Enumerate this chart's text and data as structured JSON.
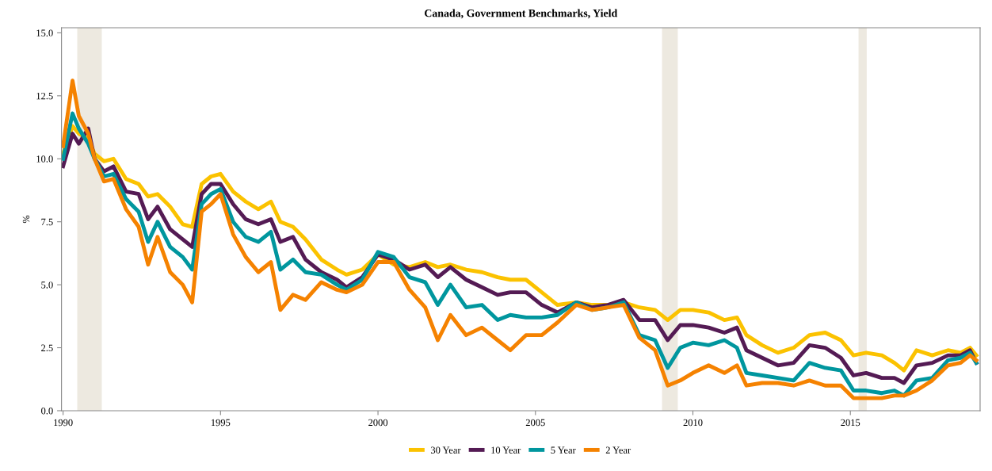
{
  "chart_data": {
    "type": "line",
    "title": "Canada, Government Benchmarks, Yield",
    "ylabel": "%",
    "x": [
      1990.0,
      1990.3,
      1990.5,
      1990.8,
      1991.0,
      1991.3,
      1991.6,
      1992.0,
      1992.4,
      1992.7,
      1993.0,
      1993.4,
      1993.8,
      1994.1,
      1994.4,
      1994.7,
      1995.0,
      1995.4,
      1995.8,
      1996.2,
      1996.6,
      1996.9,
      1997.3,
      1997.7,
      1998.2,
      1998.7,
      1999.0,
      1999.5,
      2000.0,
      2000.5,
      2001.0,
      2001.5,
      2001.9,
      2002.3,
      2002.8,
      2003.3,
      2003.8,
      2004.2,
      2004.7,
      2005.2,
      2005.7,
      2006.3,
      2006.8,
      2007.3,
      2007.8,
      2008.3,
      2008.8,
      2009.2,
      2009.6,
      2010.0,
      2010.5,
      2011.0,
      2011.4,
      2011.7,
      2012.2,
      2012.7,
      2013.2,
      2013.7,
      2014.2,
      2014.7,
      2015.1,
      2015.5,
      2016.0,
      2016.4,
      2016.7,
      2017.1,
      2017.6,
      2018.1,
      2018.5,
      2018.8,
      2019.0
    ],
    "series": [
      {
        "name": "30 Year",
        "color": "#fbc200",
        "values": [
          10.2,
          11.3,
          11.0,
          10.8,
          10.2,
          9.9,
          10.0,
          9.2,
          9.0,
          8.5,
          8.6,
          8.1,
          7.4,
          7.3,
          9.0,
          9.3,
          9.4,
          8.7,
          8.3,
          8.0,
          8.3,
          7.5,
          7.3,
          6.8,
          6.0,
          5.6,
          5.4,
          5.6,
          6.2,
          5.8,
          5.7,
          5.9,
          5.7,
          5.8,
          5.6,
          5.5,
          5.3,
          5.2,
          5.2,
          4.7,
          4.2,
          4.3,
          4.2,
          4.2,
          4.3,
          4.1,
          4.0,
          3.6,
          4.0,
          4.0,
          3.9,
          3.6,
          3.7,
          3.0,
          2.6,
          2.3,
          2.5,
          3.0,
          3.1,
          2.8,
          2.2,
          2.3,
          2.2,
          1.9,
          1.6,
          2.4,
          2.2,
          2.4,
          2.3,
          2.5,
          2.2
        ]
      },
      {
        "name": "10 Year",
        "color": "#541b54",
        "values": [
          9.7,
          11.0,
          10.6,
          11.2,
          10.0,
          9.5,
          9.7,
          8.7,
          8.6,
          7.6,
          8.1,
          7.2,
          6.8,
          6.5,
          8.6,
          9.0,
          9.0,
          8.2,
          7.6,
          7.4,
          7.6,
          6.7,
          6.9,
          6.0,
          5.5,
          5.2,
          4.9,
          5.3,
          6.2,
          6.0,
          5.6,
          5.8,
          5.3,
          5.7,
          5.2,
          4.9,
          4.6,
          4.7,
          4.7,
          4.2,
          3.9,
          4.3,
          4.1,
          4.2,
          4.4,
          3.6,
          3.6,
          2.8,
          3.4,
          3.4,
          3.3,
          3.1,
          3.3,
          2.4,
          2.1,
          1.8,
          1.9,
          2.6,
          2.5,
          2.1,
          1.4,
          1.5,
          1.3,
          1.3,
          1.1,
          1.8,
          1.9,
          2.2,
          2.2,
          2.4,
          1.9
        ]
      },
      {
        "name": "5 Year",
        "color": "#00969e",
        "values": [
          10.0,
          11.8,
          11.2,
          10.6,
          10.0,
          9.3,
          9.4,
          8.4,
          7.9,
          6.7,
          7.5,
          6.5,
          6.1,
          5.6,
          8.2,
          8.6,
          8.8,
          7.5,
          6.9,
          6.7,
          7.1,
          5.6,
          6.0,
          5.5,
          5.4,
          5.0,
          4.8,
          5.2,
          6.3,
          6.1,
          5.3,
          5.1,
          4.2,
          5.0,
          4.1,
          4.2,
          3.6,
          3.8,
          3.7,
          3.7,
          3.8,
          4.3,
          4.0,
          4.1,
          4.3,
          3.0,
          2.8,
          1.7,
          2.5,
          2.7,
          2.6,
          2.8,
          2.5,
          1.5,
          1.4,
          1.3,
          1.2,
          1.9,
          1.7,
          1.6,
          0.8,
          0.8,
          0.7,
          0.8,
          0.6,
          1.2,
          1.3,
          2.0,
          2.1,
          2.3,
          1.9
        ]
      },
      {
        "name": "2 Year",
        "color": "#f58200",
        "values": [
          10.5,
          13.1,
          11.7,
          11.0,
          10.0,
          9.1,
          9.2,
          8.0,
          7.3,
          5.8,
          6.9,
          5.5,
          5.0,
          4.3,
          7.9,
          8.2,
          8.6,
          7.0,
          6.1,
          5.5,
          5.9,
          4.0,
          4.6,
          4.4,
          5.1,
          4.8,
          4.7,
          5.0,
          5.9,
          5.9,
          4.8,
          4.1,
          2.8,
          3.8,
          3.0,
          3.3,
          2.8,
          2.4,
          3.0,
          3.0,
          3.5,
          4.2,
          4.0,
          4.1,
          4.2,
          2.9,
          2.4,
          1.0,
          1.2,
          1.5,
          1.8,
          1.5,
          1.8,
          1.0,
          1.1,
          1.1,
          1.0,
          1.2,
          1.0,
          1.0,
          0.5,
          0.5,
          0.5,
          0.6,
          0.6,
          0.8,
          1.2,
          1.8,
          1.9,
          2.2,
          2.0
        ]
      }
    ],
    "xlim": [
      1989.95,
      2019.12
    ],
    "xticks": [
      1990,
      1995,
      2000,
      2005,
      2010,
      2015
    ],
    "ylim": [
      0,
      15.2
    ],
    "yticks": [
      {
        "value": 0,
        "label": "0.0"
      },
      {
        "value": 2.5,
        "label": "2.5"
      },
      {
        "value": 5,
        "label": "5.0"
      },
      {
        "value": 7.5,
        "label": "7.5"
      },
      {
        "value": 10,
        "label": "10.0"
      },
      {
        "value": 12.5,
        "label": "12.5"
      },
      {
        "value": 15,
        "label": "15.0"
      }
    ],
    "bands": [
      {
        "axis": "x",
        "from": 1990.45,
        "to": 1991.23,
        "color": "#ede9e0"
      },
      {
        "axis": "x",
        "from": 2009.02,
        "to": 2009.52,
        "color": "#ede9e0"
      },
      {
        "axis": "x",
        "from": 2015.26,
        "to": 2015.52,
        "color": "#ede9e0"
      }
    ],
    "grid": false,
    "legend": "bottom",
    "marker": "none",
    "line_style": "solid"
  }
}
